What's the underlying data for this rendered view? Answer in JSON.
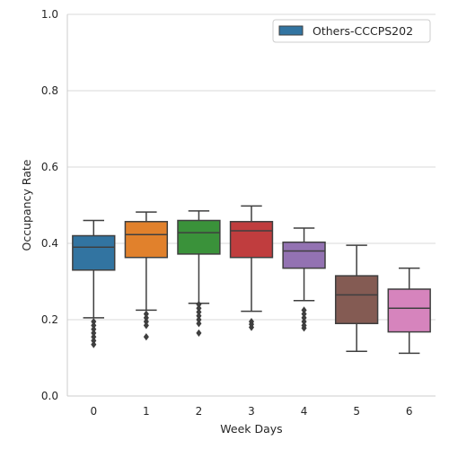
{
  "chart_data": {
    "type": "box",
    "xlabel": "Week Days",
    "ylabel": "Occupancy Rate",
    "ylim": [
      0.0,
      1.0
    ],
    "yticks": [
      0.0,
      0.2,
      0.4,
      0.6,
      0.8,
      1.0
    ],
    "ytick_labels": [
      "0.0",
      "0.2",
      "0.4",
      "0.6",
      "0.8",
      "1.0"
    ],
    "grid": "horizontal",
    "legend": {
      "position": "top-right",
      "entries": [
        {
          "name": "Others-CCCPS202",
          "color": "#3274a1"
        }
      ]
    },
    "categories": [
      "0",
      "1",
      "2",
      "3",
      "4",
      "5",
      "6"
    ],
    "boxes": [
      {
        "category": "0",
        "color": "#3274a1",
        "whisker_low": 0.205,
        "q1": 0.33,
        "median": 0.39,
        "q3": 0.42,
        "whisker_high": 0.46,
        "outliers": [
          0.195,
          0.185,
          0.175,
          0.165,
          0.155,
          0.145,
          0.135
        ]
      },
      {
        "category": "1",
        "color": "#e1812c",
        "whisker_low": 0.225,
        "q1": 0.363,
        "median": 0.423,
        "q3": 0.457,
        "whisker_high": 0.482,
        "outliers": [
          0.215,
          0.205,
          0.195,
          0.185,
          0.155
        ]
      },
      {
        "category": "2",
        "color": "#3a923a",
        "whisker_low": 0.243,
        "q1": 0.372,
        "median": 0.428,
        "q3": 0.46,
        "whisker_high": 0.485,
        "outliers": [
          0.24,
          0.23,
          0.22,
          0.21,
          0.2,
          0.19,
          0.165
        ]
      },
      {
        "category": "3",
        "color": "#c03d3e",
        "whisker_low": 0.222,
        "q1": 0.363,
        "median": 0.433,
        "q3": 0.457,
        "whisker_high": 0.498,
        "outliers": [
          0.195,
          0.188,
          0.18
        ]
      },
      {
        "category": "4",
        "color": "#9372b2",
        "whisker_low": 0.25,
        "q1": 0.335,
        "median": 0.38,
        "q3": 0.403,
        "whisker_high": 0.44,
        "outliers": [
          0.225,
          0.215,
          0.205,
          0.195,
          0.185,
          0.178
        ]
      },
      {
        "category": "5",
        "color": "#845b53",
        "whisker_low": 0.117,
        "q1": 0.19,
        "median": 0.265,
        "q3": 0.315,
        "whisker_high": 0.395,
        "outliers": []
      },
      {
        "category": "6",
        "color": "#d684bd",
        "whisker_low": 0.112,
        "q1": 0.168,
        "median": 0.23,
        "q3": 0.28,
        "whisker_high": 0.335,
        "outliers": []
      }
    ]
  }
}
